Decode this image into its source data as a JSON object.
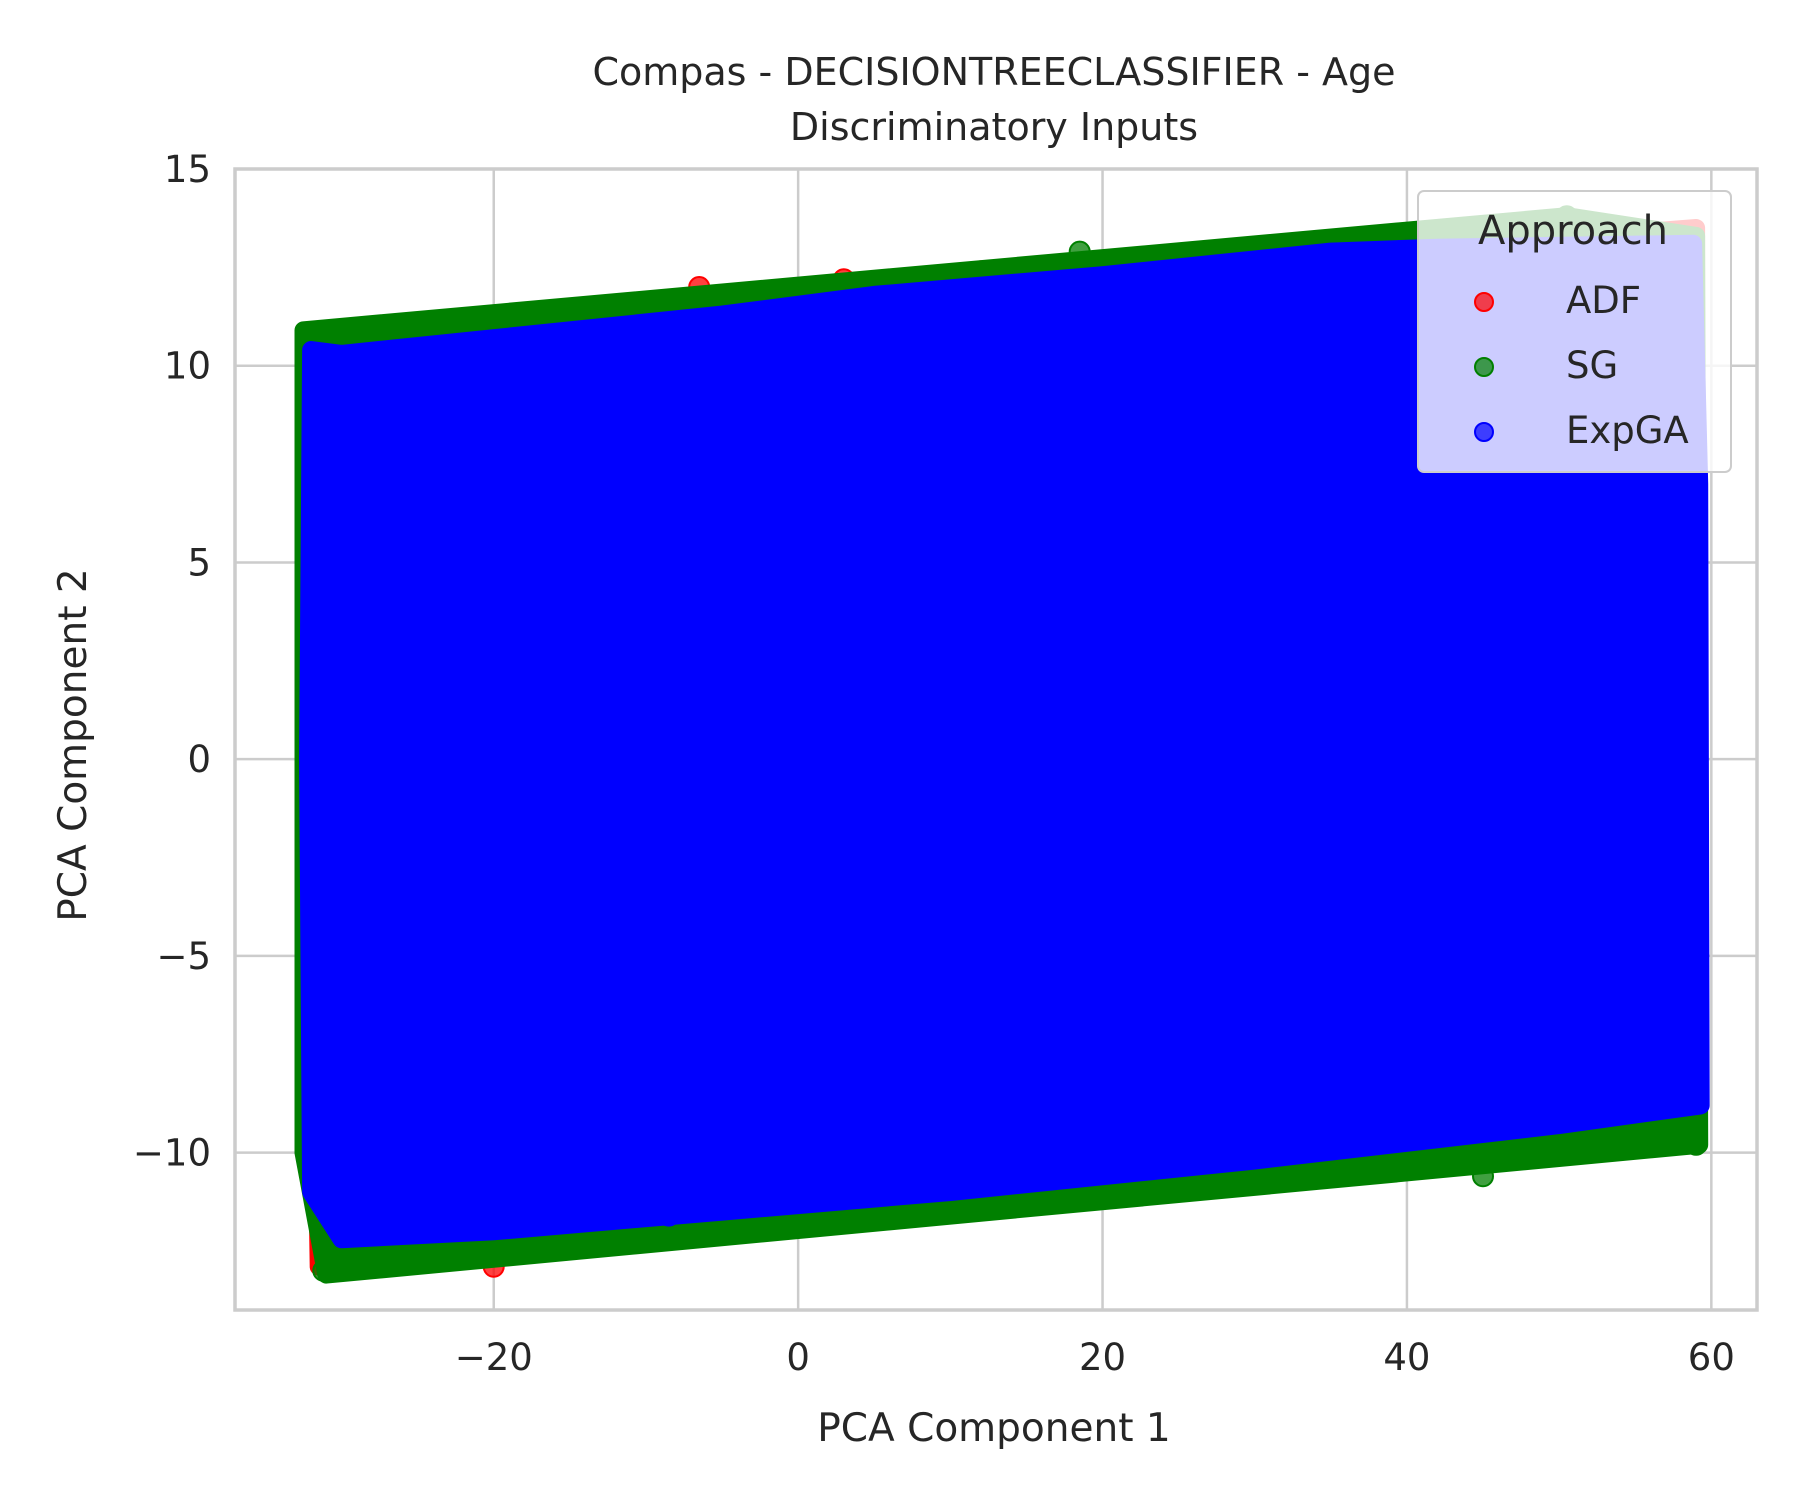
{
  "chart_data": {
    "type": "scatter",
    "title": "Compas - DECISIONTREECLASSIFIER - Age",
    "subtitle": "Discriminatory Inputs",
    "xlabel": "PCA Component 1",
    "ylabel": "PCA Component 2",
    "xlim": [
      -37,
      63
    ],
    "ylim": [
      -14,
      15
    ],
    "xticks": [
      -20,
      0,
      20,
      40,
      60
    ],
    "yticks": [
      -10,
      -5,
      0,
      5,
      10,
      15
    ],
    "xtick_labels": [
      "−20",
      "0",
      "20",
      "40",
      "60"
    ],
    "ytick_labels": [
      "−10",
      "−5",
      "0",
      "5",
      "10",
      "15"
    ],
    "grid": true,
    "legend": {
      "title": "Approach",
      "placement": "top-right"
    },
    "series": [
      {
        "name": "ADF",
        "color": "#ff0000",
        "region": [
          [
            -32.5,
            10.7
          ],
          [
            59.0,
            13.5
          ],
          [
            59.0,
            -9.5
          ],
          [
            -31.5,
            -12.9
          ]
        ],
        "points": [
          [
            -20,
            -12.9
          ],
          [
            -6.5,
            12.0
          ],
          [
            3.0,
            12.2
          ],
          [
            12.0,
            12.4
          ]
        ]
      },
      {
        "name": "SG",
        "color": "#008000",
        "region": [
          [
            -32.5,
            10.9
          ],
          [
            50.5,
            13.8
          ],
          [
            59.0,
            13.3
          ],
          [
            59.2,
            -9.8
          ],
          [
            -31.0,
            -13.1
          ],
          [
            -32.5,
            -10.0
          ]
        ],
        "points": [
          [
            -31.2,
            -13.0
          ],
          [
            18.5,
            12.9
          ],
          [
            36.5,
            13.1
          ],
          [
            50.5,
            13.8
          ],
          [
            59.0,
            -9.8
          ],
          [
            45.0,
            -10.6
          ]
        ]
      },
      {
        "name": "ExpGA",
        "color": "#0000ff",
        "region": [
          [
            -32.0,
            10.4
          ],
          [
            -30.0,
            10.3
          ],
          [
            -20.0,
            10.7
          ],
          [
            -5.0,
            11.3
          ],
          [
            5.0,
            11.8
          ],
          [
            20.0,
            12.3
          ],
          [
            35.0,
            12.9
          ],
          [
            42.0,
            13.0
          ],
          [
            58.8,
            13.1
          ],
          [
            59.2,
            7.0
          ],
          [
            59.3,
            -8.8
          ],
          [
            50.0,
            -9.3
          ],
          [
            30.0,
            -10.2
          ],
          [
            10.0,
            -11.0
          ],
          [
            -5.0,
            -11.5
          ],
          [
            -20.0,
            -12.0
          ],
          [
            -30.0,
            -12.2
          ],
          [
            -32.0,
            -11.0
          ],
          [
            -32.2,
            0.0
          ]
        ],
        "points": [
          [
            -31.8,
            7.4
          ],
          [
            -31.6,
            1.3
          ],
          [
            -31.0,
            -9.8
          ],
          [
            -8.5,
            -11.6
          ],
          [
            58.9,
            9.2
          ],
          [
            57.0,
            13.0
          ]
        ]
      }
    ]
  }
}
